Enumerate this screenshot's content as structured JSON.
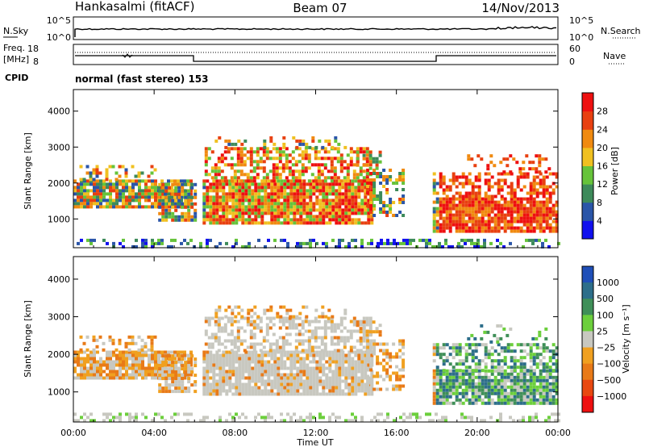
{
  "header": {
    "station": "Hankasalmi (fitACF)",
    "beam": "Beam 07",
    "date": "14/Nov/2013"
  },
  "top_strip": {
    "left_label": "N.Sky",
    "right_label": "N.Search",
    "y_ticks_left": [
      "10^5",
      "10^0"
    ],
    "y_ticks_right": [
      "10^5",
      "10^0"
    ]
  },
  "freq_strip": {
    "left_label_1": "Freq.",
    "left_label_2": "[MHz]",
    "left_ticks": [
      "18",
      "8"
    ],
    "right_label": "Nave",
    "right_ticks": [
      "60",
      "0"
    ],
    "cpid_label": "CPID",
    "cpid_text": "normal (fast stereo) 153"
  },
  "colors": {
    "power": [
      "#1010ee",
      "#2a55a8",
      "#3d8a5a",
      "#66c33a",
      "#f0c020",
      "#f08a10",
      "#e84010",
      "#ee1010"
    ],
    "velocity": [
      "#1f4fb8",
      "#2d6e8a",
      "#3f8f58",
      "#6ccf3c",
      "#c8c8c0",
      "#f0a020",
      "#e87a18",
      "#e84810",
      "#ee1010"
    ]
  },
  "chart_data": [
    {
      "type": "heatmap",
      "panel": "power",
      "ylabel": "Slant Range [km]",
      "xlabel": "",
      "x_ticks": [
        "00:00",
        "04:00",
        "08:00",
        "12:00",
        "16:00",
        "20:00",
        "00:00"
      ],
      "xlim_hours": [
        0,
        24
      ],
      "ylim": [
        200,
        4600
      ],
      "y_ticks": [
        1000,
        2000,
        3000,
        4000
      ],
      "colorbar": {
        "label": "Power [dB]",
        "range": [
          0,
          32
        ],
        "ticks": [
          4,
          8,
          12,
          16,
          20,
          24,
          28
        ]
      }
    },
    {
      "type": "heatmap",
      "panel": "velocity",
      "ylabel": "Slant Range [km]",
      "xlabel": "Time UT",
      "x_ticks": [
        "00:00",
        "04:00",
        "08:00",
        "12:00",
        "16:00",
        "20:00",
        "00:00"
      ],
      "xlim_hours": [
        0,
        24
      ],
      "ylim": [
        200,
        4600
      ],
      "y_ticks": [
        1000,
        2000,
        3000,
        4000
      ],
      "colorbar": {
        "label": "Velocity [m s⁻¹]",
        "ticks": [
          "1000",
          "500",
          "100",
          "25",
          "−25",
          "−100",
          "−500",
          "−1000"
        ]
      }
    }
  ]
}
